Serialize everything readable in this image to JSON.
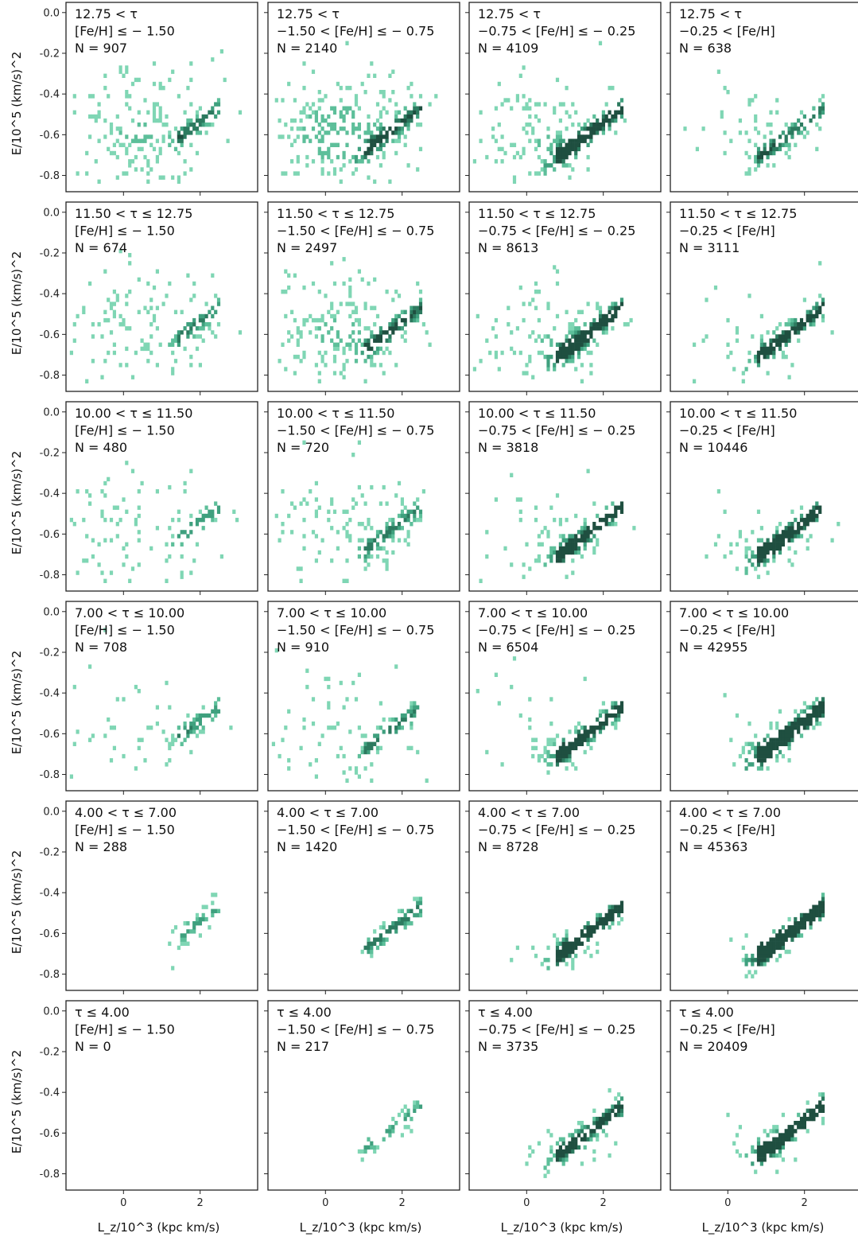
{
  "chart_data": {
    "type": "heatmap",
    "description_note": "",
    "rows": [
      {
        "tau_label": "12.75 < τ"
      },
      {
        "tau_label": "11.50 < τ ≤ 12.75"
      },
      {
        "tau_label": "10.00 < τ ≤ 11.50"
      },
      {
        "tau_label": "7.00 < τ ≤ 10.00"
      },
      {
        "tau_label": "4.00 < τ ≤ 7.00"
      },
      {
        "tau_label": "τ ≤ 4.00"
      }
    ],
    "columns": [
      {
        "feh_label": "[Fe/H] ≤ − 1.50"
      },
      {
        "feh_label": "−1.50 < [Fe/H] ≤ − 0.75"
      },
      {
        "feh_label": "−0.75 < [Fe/H] ≤ − 0.25"
      },
      {
        "feh_label": "−0.25 < [Fe/H]"
      }
    ],
    "counts": [
      [
        "N = 907",
        "N = 2140",
        "N = 4109",
        "N = 638"
      ],
      [
        "N = 674",
        "N = 2497",
        "N = 8613",
        "N = 3111"
      ],
      [
        "N = 480",
        "N = 720",
        "N = 3818",
        "N = 10446"
      ],
      [
        "N = 708",
        "N = 910",
        "N = 6504",
        "N = 42955"
      ],
      [
        "N = 288",
        "N = 1420",
        "N = 8728",
        "N = 45363"
      ],
      [
        "N = 0",
        "N = 217",
        "N = 3735",
        "N = 20409"
      ]
    ],
    "N_values": [
      [
        907,
        2140,
        4109,
        638
      ],
      [
        674,
        2497,
        8613,
        3111
      ],
      [
        480,
        720,
        3818,
        10446
      ],
      [
        708,
        910,
        6504,
        42955
      ],
      [
        288,
        1420,
        8728,
        45363
      ],
      [
        0,
        217,
        3735,
        20409
      ]
    ],
    "xlabel": "L_z/10^3 (kpc km/s)",
    "ylabel": "E/10^5 (km/s)^2",
    "xlim": [
      -1.5,
      3.5
    ],
    "ylim": [
      -0.88,
      0.05
    ],
    "xticks": [
      0,
      2
    ],
    "xtick_labels": [
      "0",
      "2"
    ],
    "yticks": [
      0.0,
      -0.2,
      -0.4,
      -0.6,
      -0.8
    ],
    "ytick_labels": [
      "0.0",
      "-0.2",
      "-0.4",
      "-0.6",
      "-0.8"
    ],
    "grid": false,
    "colormap_colors": [
      "#7fd6b4",
      "#5dbf9a",
      "#3fa07e",
      "#2c7a5f",
      "#1f4f40"
    ]
  }
}
